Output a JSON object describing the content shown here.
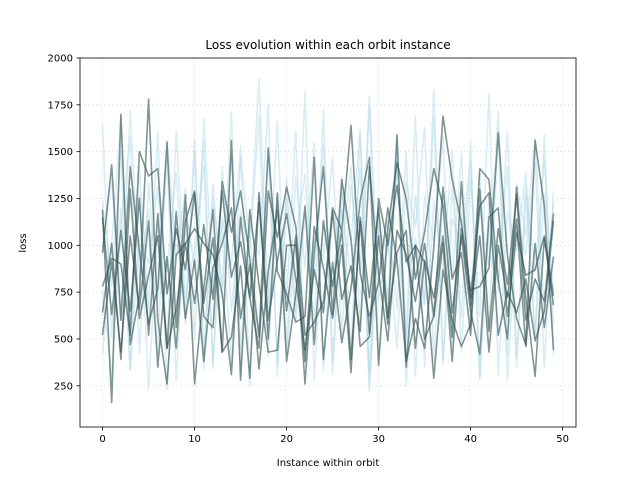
{
  "chart_data": {
    "type": "line",
    "title": "Loss evolution within each orbit instance",
    "xlabel": "Instance within orbit",
    "ylabel": "loss",
    "xlim": [
      -2.45,
      51.45
    ],
    "ylim": [
      30,
      2000
    ],
    "xticks": [
      0,
      10,
      20,
      30,
      40,
      50
    ],
    "yticks": [
      250,
      500,
      750,
      1000,
      1250,
      1500,
      1750,
      2000
    ],
    "grid": true,
    "legend": "none",
    "colors": {
      "light": "#add8e6",
      "dark": "#2f4f4f"
    },
    "x": [
      0,
      1,
      2,
      3,
      4,
      5,
      6,
      7,
      8,
      9,
      10,
      11,
      12,
      13,
      14,
      15,
      16,
      17,
      18,
      19,
      20,
      21,
      22,
      23,
      24,
      25,
      26,
      27,
      28,
      29,
      30,
      31,
      32,
      33,
      34,
      35,
      36,
      37,
      38,
      39,
      40,
      41,
      42,
      43,
      44,
      45,
      46,
      47,
      48,
      49
    ],
    "series": [
      {
        "style": "dark",
        "values": [
          1190,
          160,
          1700,
          470,
          730,
          1780,
          600,
          260,
          950,
          1010,
          1090,
          1010,
          950,
          740,
          310,
          1150,
          720,
          450,
          1290,
          1040,
          1310,
          1100,
          520,
          590,
          700,
          1200,
          1080,
          1640,
          850,
          620,
          800,
          1200,
          920,
          380,
          610,
          450,
          990,
          1690,
          1350,
          1120,
          760,
          780,
          880,
          1600,
          950,
          610,
          470,
          1560,
          1210,
          440
        ]
      },
      {
        "style": "dark",
        "values": [
          780,
          930,
          900,
          520,
          1500,
          1370,
          1410,
          740,
          1090,
          870,
          1280,
          620,
          560,
          1340,
          1070,
          1290,
          930,
          510,
          1520,
          860,
          740,
          590,
          620,
          1470,
          390,
          910,
          480,
          770,
          1240,
          1470,
          360,
          1090,
          1440,
          1250,
          820,
          1070,
          1410,
          1210,
          640,
          1050,
          650,
          420,
          1150,
          1200,
          620,
          1070,
          840,
          870,
          1050,
          730
        ]
      },
      {
        "style": "dark",
        "values": [
          960,
          1430,
          600,
          1420,
          970,
          580,
          770,
          1550,
          560,
          1270,
          260,
          770,
          1190,
          430,
          1560,
          280,
          1190,
          790,
          430,
          440,
          1000,
          1000,
          260,
          960,
          1420,
          630,
          1350,
          1030,
          460,
          510,
          1050,
          580,
          1590,
          350,
          1000,
          910,
          290,
          870,
          600,
          460,
          580,
          1410,
          1350,
          820,
          500,
          1310,
          720,
          300,
          1040,
          680
        ]
      },
      {
        "style": "dark",
        "values": [
          520,
          910,
          430,
          1050,
          660,
          1130,
          350,
          940,
          450,
          1130,
          1290,
          690,
          1040,
          430,
          510,
          890,
          290,
          1280,
          500,
          1280,
          380,
          740,
          1210,
          470,
          1130,
          780,
          1080,
          390,
          1130,
          530,
          1250,
          1000,
          1320,
          910,
          1000,
          500,
          620,
          1010,
          380,
          1090,
          720,
          1210,
          1280,
          520,
          750,
          640,
          820,
          490,
          650,
          1130
        ]
      },
      {
        "style": "dark",
        "values": [
          1150,
          630,
          1080,
          650,
          1250,
          520,
          1170,
          450,
          660,
          1010,
          690,
          1110,
          710,
          1290,
          830,
          1020,
          720,
          1230,
          600,
          920,
          1170,
          820,
          440,
          870,
          640,
          1180,
          710,
          890,
          540,
          1420,
          850,
          490,
          1080,
          950,
          700,
          1010,
          620,
          1310,
          820,
          960,
          520,
          1300,
          540,
          1090,
          790,
          1270,
          600,
          820,
          700,
          1170
        ]
      },
      {
        "style": "dark",
        "values": [
          640,
          1010,
          390,
          1300,
          610,
          840,
          1050,
          450,
          1180,
          610,
          920,
          380,
          880,
          1010,
          1200,
          610,
          900,
          340,
          860,
          1190,
          650,
          1050,
          380,
          1100,
          880,
          610,
          1000,
          320,
          1150,
          720,
          1200,
          610,
          960,
          1080,
          450,
          920,
          720,
          1050,
          510,
          1340,
          680,
          1050,
          430,
          1000,
          720,
          1140,
          460,
          1010,
          560,
          940
        ]
      }
    ],
    "light_series": [
      [
        1650,
        510,
        1200,
        340,
        1420,
        660,
        1610,
        230,
        1120,
        580,
        1500,
        410,
        1330,
        720,
        1710,
        300,
        1050,
        520,
        1480,
        360,
        1250,
        640,
        1820,
        280,
        1140,
        760,
        1370,
        420,
        1590,
        330,
        1210,
        570,
        1460,
        250,
        1040,
        690,
        1680,
        390,
        1320,
        610,
        1550,
        290,
        1110,
        800,
        1420,
        350,
        1260,
        520,
        1590,
        410
      ],
      [
        1240,
        780,
        1490,
        330,
        1050,
        900,
        1320,
        460,
        1610,
        720,
        980,
        1420,
        370,
        1150,
        890,
        1530,
        250,
        1290,
        700,
        1660,
        420,
        1040,
        1380,
        560,
        1720,
        310,
        1190,
        850,
        1410,
        220,
        1090,
        960,
        1580,
        470,
        1270,
        680,
        1830,
        360,
        1140,
        1010,
        1450,
        290,
        1230,
        750,
        1610,
        400,
        1320,
        860,
        1460,
        570
      ],
      [
        420,
        1010,
        1680,
        520,
        1270,
        230,
        1090,
        860,
        1390,
        610,
        1570,
        340,
        1250,
        780,
        1480,
        450,
        1120,
        940,
        1750,
        300,
        1360,
        590,
        1170,
        830,
        1540,
        380,
        1280,
        1030,
        1620,
        260,
        1130,
        710,
        1440,
        520,
        1690,
        350,
        1240,
        880,
        1510,
        430,
        1360,
        620,
        1810,
        310,
        1180,
        970,
        1390,
        500,
        1280,
        760
      ],
      [
        990,
        1350,
        600,
        1720,
        830,
        1190,
        420,
        1560,
        940,
        1300,
        500,
        1680,
        750,
        1120,
        360,
        1480,
        1020,
        1890,
        640,
        1250,
        460,
        1370,
        880,
        1550,
        330,
        1190,
        970,
        1420,
        580,
        1800,
        700,
        1040,
        450,
        1340,
        1100,
        1630,
        380,
        1260,
        820,
        1490,
        560,
        1200,
        900,
        1710,
        410,
        1330,
        1050,
        1570,
        620,
        1230
      ],
      [
        760,
        290,
        1110,
        1580,
        420,
        1330,
        710,
        1460,
        280,
        1200,
        880,
        1550,
        340,
        1420,
        650,
        1180,
        980,
        1690,
        410,
        1270,
        720,
        1610,
        370,
        1050,
        930,
        1470,
        520,
        1320,
        860,
        1740,
        390,
        1140,
        660,
        1500,
        300,
        1260,
        1020,
        1580,
        470,
        1180,
        730,
        1390,
        560,
        1620,
        280,
        1100,
        950,
        1440,
        350,
        1290
      ]
    ]
  }
}
